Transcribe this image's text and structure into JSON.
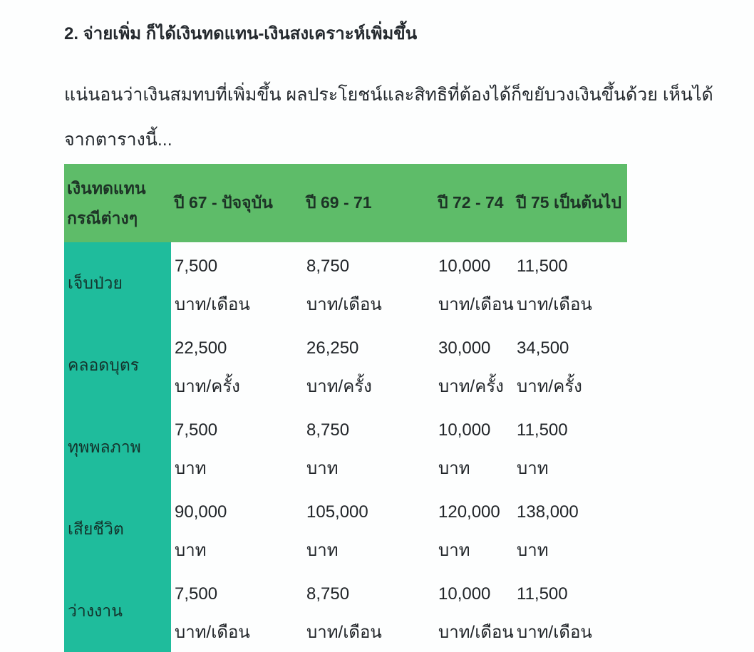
{
  "page": {
    "heading": "2. จ่ายเพิ่ม ก็ได้เงินทดแทน-เงินสงเคราะห์เพิ่มขึ้น",
    "paragraph_lines": [
      "แน่นอนว่าเงินสมทบที่เพิ่มขึ้น ผลประโยชน์และสิทธิที่ต้องได้ก็ขยับวงเงินขึ้นด้วย เห็นได้",
      "จากตารางนี้..."
    ]
  },
  "table": {
    "header": [
      "เงินทดแทนกรณีต่างๆ",
      "ปี 67 - ปัจจุบัน",
      "ปี 69 - 71",
      "ปี 72 - 74",
      "ปี 75 เป็นต้นไป"
    ],
    "rows": [
      {
        "label": "เจ็บป่วย",
        "cells": [
          {
            "amount": "7,500",
            "unit": "บาท/เดือน"
          },
          {
            "amount": "8,750",
            "unit": "บาท/เดือน"
          },
          {
            "amount": "10,000",
            "unit": "บาท/เดือน"
          },
          {
            "amount": "11,500",
            "unit": "บาท/เดือน"
          }
        ]
      },
      {
        "label": "คลอดบุตร",
        "cells": [
          {
            "amount": "22,500",
            "unit": "บาท/ครั้ง"
          },
          {
            "amount": "26,250",
            "unit": "บาท/ครั้ง"
          },
          {
            "amount": "30,000",
            "unit": "บาท/ครั้ง"
          },
          {
            "amount": "34,500",
            "unit": "บาท/ครั้ง"
          }
        ]
      },
      {
        "label": "ทุพพลภาพ",
        "cells": [
          {
            "amount": "7,500",
            "unit": "บาท"
          },
          {
            "amount": "8,750",
            "unit": "บาท"
          },
          {
            "amount": "10,000",
            "unit": "บาท"
          },
          {
            "amount": "11,500",
            "unit": "บาท"
          }
        ]
      },
      {
        "label": "เสียชีวิต",
        "cells": [
          {
            "amount": "90,000",
            "unit": "บาท"
          },
          {
            "amount": "105,000",
            "unit": "บาท"
          },
          {
            "amount": "120,000",
            "unit": "บาท"
          },
          {
            "amount": "138,000",
            "unit": "บาท"
          }
        ]
      },
      {
        "label": "ว่างงาน",
        "cells": [
          {
            "amount": "7,500",
            "unit": "บาท/เดือน"
          },
          {
            "amount": "8,750",
            "unit": "บาท/เดือน"
          },
          {
            "amount": "10,000",
            "unit": "บาท/เดือน"
          },
          {
            "amount": "11,500",
            "unit": "บาท/เดือน"
          }
        ]
      }
    ]
  },
  "colors": {
    "header_bg": "#5EBC69",
    "label_bg": "#1FBC9C",
    "text": "#212529"
  }
}
